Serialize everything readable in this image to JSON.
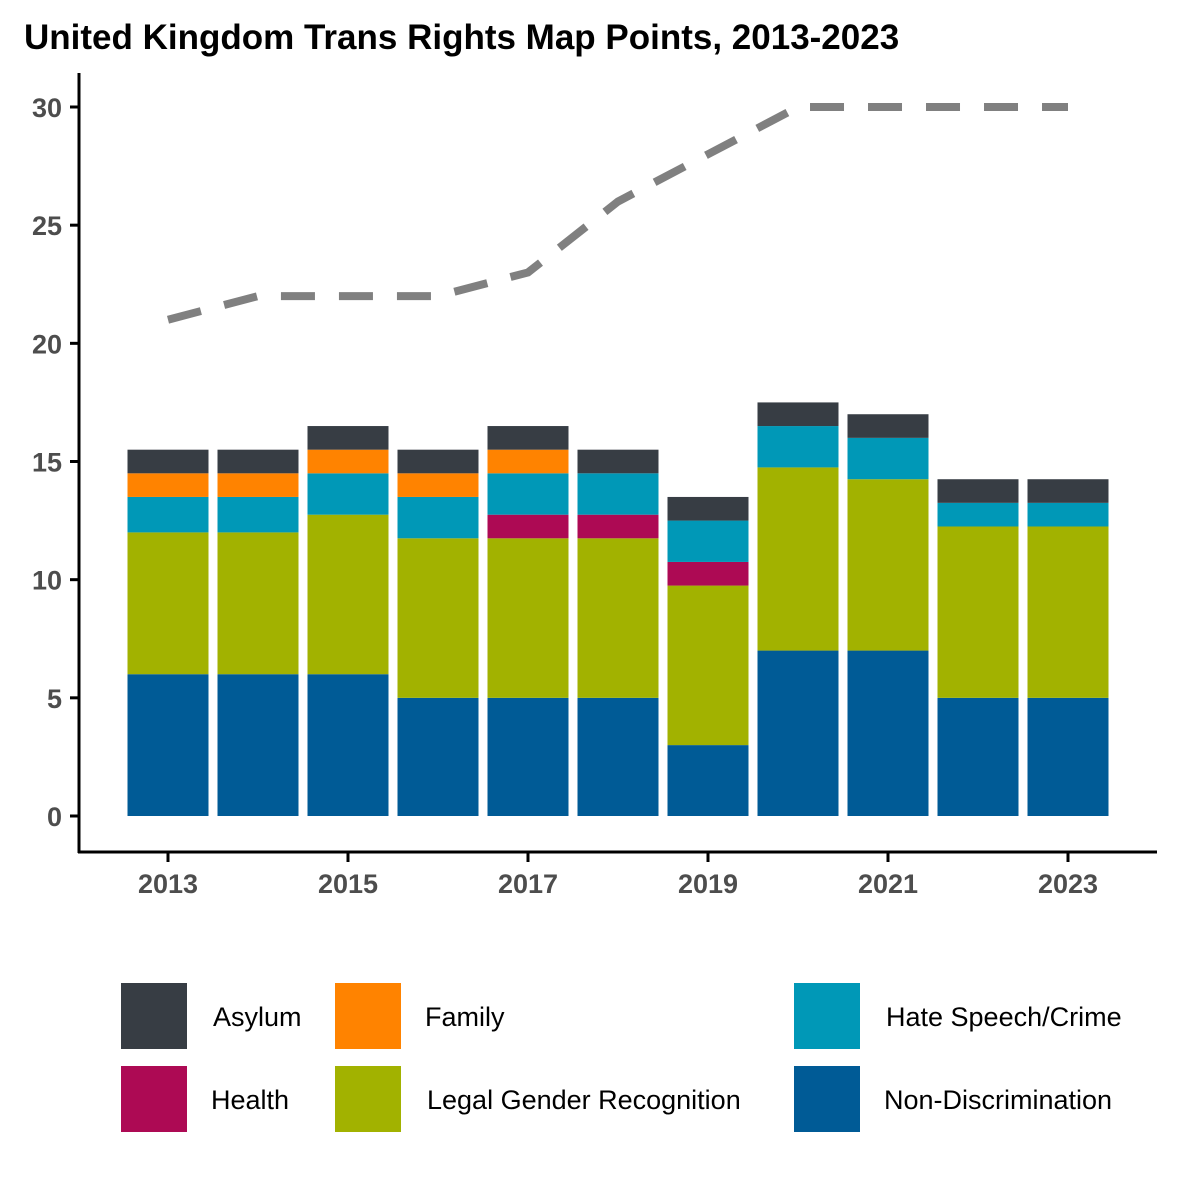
{
  "chart_data": {
    "type": "bar",
    "stacked": true,
    "title": "United Kingdom Trans Rights Map Points, 2013-2023",
    "xlabel": "",
    "ylabel": "",
    "ylim": [
      0,
      30
    ],
    "yticks": [
      0,
      5,
      10,
      15,
      20,
      25,
      30
    ],
    "xticks": [
      "2013",
      "2015",
      "2017",
      "2019",
      "2021",
      "2023"
    ],
    "categories": [
      "2013",
      "2014",
      "2015",
      "2016",
      "2017",
      "2018",
      "2019",
      "2020",
      "2021",
      "2022",
      "2023"
    ],
    "series": [
      {
        "name": "Non-Discrimination",
        "color": "#005b96",
        "values": [
          6,
          6,
          6,
          5,
          5,
          5,
          3,
          7,
          7,
          5,
          5
        ]
      },
      {
        "name": "Legal Gender Recognition",
        "color": "#a2b200",
        "values": [
          6,
          6,
          6.75,
          6.75,
          6.75,
          6.75,
          6.75,
          7.75,
          7.25,
          7.25,
          7.25
        ]
      },
      {
        "name": "Health",
        "color": "#ad0a54",
        "values": [
          0,
          0,
          0,
          0,
          1,
          1,
          1,
          0,
          0,
          0,
          0
        ]
      },
      {
        "name": "Hate Speech/Crime",
        "color": "#0098b7",
        "values": [
          1.5,
          1.5,
          1.75,
          1.75,
          1.75,
          1.75,
          1.75,
          1.75,
          1.75,
          1,
          1
        ]
      },
      {
        "name": "Family",
        "color": "#ff8300",
        "values": [
          1,
          1,
          1,
          1,
          1,
          0,
          0,
          0,
          0,
          0,
          0
        ]
      },
      {
        "name": "Asylum",
        "color": "#373d44",
        "values": [
          1,
          1,
          1,
          1,
          1,
          1,
          1,
          1,
          1,
          1,
          1
        ]
      }
    ],
    "line": {
      "color": "#808080",
      "style": "dashed",
      "values": [
        21,
        22,
        22,
        22,
        23,
        26,
        28,
        30,
        30,
        30,
        30
      ]
    },
    "legend": {
      "placement": "bottom",
      "order": [
        "Asylum",
        "Family",
        "Hate Speech/Crime",
        "Health",
        "Legal Gender Recognition",
        "Non-Discrimination"
      ]
    },
    "grid": false
  }
}
